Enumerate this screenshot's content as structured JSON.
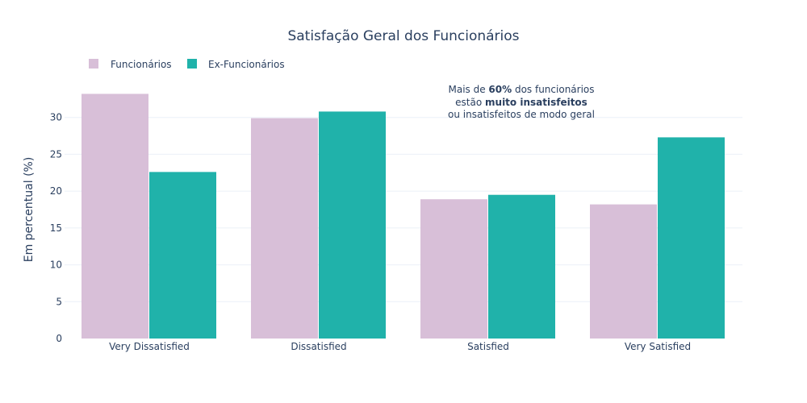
{
  "chart_data": {
    "type": "bar",
    "title": "Satisfação Geral dos Funcionários",
    "xlabel": "",
    "ylabel": "Em percentual (%)",
    "categories": [
      "Very Dissatisfied",
      "Dissatisfied",
      "Satisfied",
      "Very Satisfied"
    ],
    "series": [
      {
        "name": "Funcionários",
        "color": "#d8bfd8",
        "values": [
          33.2,
          29.9,
          18.9,
          18.2
        ]
      },
      {
        "name": "Ex-Funcionários",
        "color": "#20b2aa",
        "values": [
          22.6,
          30.8,
          19.5,
          27.3
        ]
      }
    ],
    "ylim": [
      0,
      35
    ],
    "yticks": [
      0,
      5,
      10,
      15,
      20,
      25,
      30
    ],
    "legend_position": "top-left",
    "grid": true,
    "annotation": {
      "line1_pre": "Mais de ",
      "line1_bold": "60%",
      "line1_post": " dos funcionários",
      "line2_pre": "estão ",
      "line2_bold": "muito insatisfeitos",
      "line3": "ou insatisfeitos de modo geral"
    }
  }
}
